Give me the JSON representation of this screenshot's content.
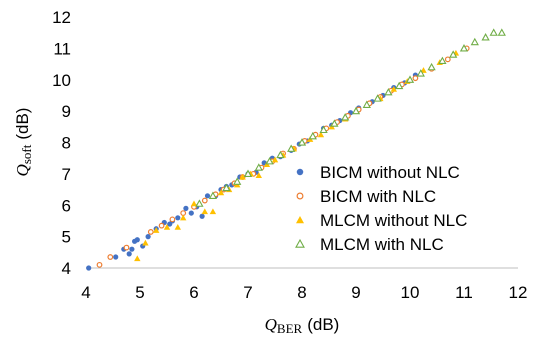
{
  "chart_data": {
    "type": "scatter",
    "xlabel": {
      "symbol": "Q",
      "subscript": "BER",
      "unit": "(dB)"
    },
    "ylabel": {
      "symbol": "Q",
      "subscript": "soft",
      "unit": "(dB)"
    },
    "xlim": [
      4,
      12
    ],
    "ylim": [
      4,
      12
    ],
    "xticks": [
      "4",
      "5",
      "6",
      "7",
      "8",
      "9",
      "10",
      "11",
      "12"
    ],
    "yticks": [
      "4",
      "5",
      "6",
      "7",
      "8",
      "9",
      "10",
      "11",
      "12"
    ],
    "grid": false,
    "legend_position": "bottom-right",
    "series": [
      {
        "name": "BICM without NLC",
        "marker": "filled-circle",
        "color": "#4472C4",
        "points": [
          [
            4.05,
            4.0
          ],
          [
            4.55,
            4.35
          ],
          [
            4.7,
            4.6
          ],
          [
            4.8,
            4.45
          ],
          [
            4.85,
            4.6
          ],
          [
            4.9,
            4.85
          ],
          [
            4.95,
            4.9
          ],
          [
            5.05,
            4.7
          ],
          [
            5.15,
            5.0
          ],
          [
            5.3,
            5.25
          ],
          [
            5.45,
            5.45
          ],
          [
            5.55,
            5.4
          ],
          [
            5.6,
            5.5
          ],
          [
            5.7,
            5.6
          ],
          [
            5.85,
            5.9
          ],
          [
            5.95,
            5.75
          ],
          [
            6.05,
            5.95
          ],
          [
            6.15,
            5.65
          ],
          [
            6.25,
            6.3
          ],
          [
            6.4,
            6.3
          ],
          [
            6.5,
            6.5
          ],
          [
            6.6,
            6.6
          ],
          [
            6.7,
            6.65
          ],
          [
            6.85,
            6.9
          ],
          [
            7.0,
            7.0
          ],
          [
            7.15,
            7.05
          ],
          [
            7.3,
            7.35
          ],
          [
            7.45,
            7.5
          ],
          [
            7.6,
            7.55
          ],
          [
            7.8,
            7.75
          ],
          [
            7.95,
            7.95
          ],
          [
            8.1,
            8.05
          ],
          [
            8.25,
            8.25
          ],
          [
            8.4,
            8.45
          ],
          [
            8.55,
            8.55
          ],
          [
            8.7,
            8.7
          ],
          [
            8.9,
            8.95
          ],
          [
            9.05,
            9.1
          ],
          [
            9.3,
            9.3
          ],
          [
            9.5,
            9.5
          ],
          [
            9.7,
            9.75
          ],
          [
            9.9,
            9.9
          ],
          [
            10.1,
            10.15
          ]
        ]
      },
      {
        "name": "BICM with NLC",
        "marker": "open-circle",
        "color": "#ED7D31",
        "points": [
          [
            4.25,
            4.1
          ],
          [
            4.45,
            4.35
          ],
          [
            4.75,
            4.65
          ],
          [
            5.2,
            5.15
          ],
          [
            5.4,
            5.35
          ],
          [
            5.6,
            5.55
          ],
          [
            5.8,
            5.75
          ],
          [
            6.0,
            5.95
          ],
          [
            6.2,
            6.15
          ],
          [
            6.4,
            6.35
          ],
          [
            6.55,
            6.5
          ],
          [
            6.75,
            6.7
          ],
          [
            6.9,
            6.9
          ],
          [
            7.1,
            7.0
          ],
          [
            7.25,
            7.2
          ],
          [
            7.45,
            7.4
          ],
          [
            7.65,
            7.65
          ],
          [
            7.85,
            7.8
          ],
          [
            8.05,
            8.05
          ],
          [
            8.25,
            8.25
          ],
          [
            8.45,
            8.45
          ],
          [
            8.65,
            8.65
          ],
          [
            8.85,
            8.85
          ],
          [
            9.05,
            9.05
          ],
          [
            9.25,
            9.25
          ],
          [
            9.45,
            9.45
          ],
          [
            9.65,
            9.65
          ],
          [
            9.85,
            9.85
          ],
          [
            10.1,
            10.05
          ],
          [
            10.4,
            10.35
          ],
          [
            10.7,
            10.65
          ],
          [
            11.05,
            11.0
          ]
        ]
      },
      {
        "name": "MLCM without NLC",
        "marker": "filled-triangle",
        "color": "#FFC000",
        "points": [
          [
            4.95,
            4.3
          ],
          [
            5.1,
            4.8
          ],
          [
            5.3,
            5.2
          ],
          [
            5.5,
            5.3
          ],
          [
            5.7,
            5.3
          ],
          [
            5.8,
            5.6
          ],
          [
            6.0,
            6.05
          ],
          [
            6.2,
            5.8
          ],
          [
            6.35,
            5.8
          ],
          [
            6.5,
            6.4
          ],
          [
            6.65,
            6.5
          ],
          [
            6.8,
            6.65
          ],
          [
            6.9,
            6.9
          ],
          [
            7.05,
            7.0
          ],
          [
            7.2,
            6.95
          ],
          [
            7.35,
            7.3
          ],
          [
            7.5,
            7.45
          ],
          [
            7.65,
            7.6
          ],
          [
            7.85,
            7.8
          ],
          [
            8.0,
            8.0
          ],
          [
            8.15,
            8.1
          ],
          [
            8.35,
            8.25
          ],
          [
            8.55,
            8.5
          ],
          [
            8.8,
            8.75
          ],
          [
            9.0,
            9.0
          ],
          [
            9.2,
            9.2
          ],
          [
            9.45,
            9.4
          ],
          [
            9.7,
            9.7
          ],
          [
            9.95,
            9.95
          ],
          [
            10.25,
            10.3
          ],
          [
            10.55,
            10.55
          ],
          [
            10.85,
            10.85
          ]
        ]
      },
      {
        "name": "MLCM with NLC",
        "marker": "open-triangle",
        "color": "#70AD47",
        "points": [
          [
            6.1,
            6.05
          ],
          [
            6.35,
            6.3
          ],
          [
            6.6,
            6.55
          ],
          [
            6.8,
            6.75
          ],
          [
            7.0,
            7.0
          ],
          [
            7.2,
            7.2
          ],
          [
            7.4,
            7.4
          ],
          [
            7.6,
            7.6
          ],
          [
            7.8,
            7.8
          ],
          [
            8.0,
            8.0
          ],
          [
            8.2,
            8.2
          ],
          [
            8.4,
            8.4
          ],
          [
            8.6,
            8.6
          ],
          [
            8.8,
            8.8
          ],
          [
            9.0,
            9.0
          ],
          [
            9.2,
            9.2
          ],
          [
            9.4,
            9.4
          ],
          [
            9.6,
            9.6
          ],
          [
            9.8,
            9.8
          ],
          [
            10.0,
            10.0
          ],
          [
            10.2,
            10.2
          ],
          [
            10.4,
            10.4
          ],
          [
            10.6,
            10.6
          ],
          [
            10.8,
            10.8
          ],
          [
            11.0,
            11.0
          ],
          [
            11.2,
            11.2
          ],
          [
            11.4,
            11.35
          ],
          [
            11.55,
            11.5
          ],
          [
            11.7,
            11.5
          ]
        ]
      }
    ]
  }
}
